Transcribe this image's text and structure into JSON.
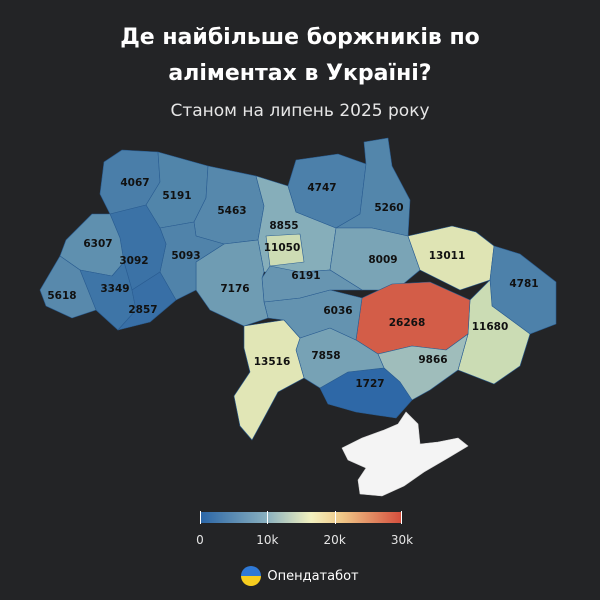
{
  "title_line1": "Де найбільше боржників по",
  "title_line2": "аліментах в Україні?",
  "subtitle": "Станом на липень 2025 року",
  "map_data": {
    "metric": "debtors_count",
    "color_scale": {
      "min": 0,
      "max": 30000,
      "colors": [
        "#2a65a6",
        "#89b0bf",
        "#f2f1bf",
        "#f0c888",
        "#d44d3c"
      ]
    },
    "regions": [
      {
        "name": "Volyn",
        "value": 4067,
        "color": "#4a7ea9"
      },
      {
        "name": "Rivne",
        "value": 5191,
        "color": "#5185aa"
      },
      {
        "name": "Zhytomyr",
        "value": 5463,
        "color": "#5688ac"
      },
      {
        "name": "Kyiv Oblast",
        "value": 8855,
        "color": "#86aeba"
      },
      {
        "name": "Kyiv City",
        "value": 11050,
        "color": "#cddcb4"
      },
      {
        "name": "Chernihiv",
        "value": 4747,
        "color": "#4c80aa"
      },
      {
        "name": "Sumy",
        "value": 5260,
        "color": "#5386ab"
      },
      {
        "name": "Poltava",
        "value": 8009,
        "color": "#7aa4b6"
      },
      {
        "name": "Kharkiv",
        "value": 13011,
        "color": "#dfe4b4"
      },
      {
        "name": "Luhansk",
        "value": 4781,
        "color": "#4d81aa"
      },
      {
        "name": "Donetsk",
        "value": 11680,
        "color": "#cbdcb4"
      },
      {
        "name": "Dnipropetrovsk",
        "value": 26268,
        "color": "#d35d48"
      },
      {
        "name": "Zaporizhzhia",
        "value": 9866,
        "color": "#9fbdbb"
      },
      {
        "name": "Kherson",
        "value": 1727,
        "color": "#2e68a7"
      },
      {
        "name": "Mykolaiv",
        "value": 7858,
        "color": "#77a2b5"
      },
      {
        "name": "Odesa",
        "value": 13516,
        "color": "#e1e6b6"
      },
      {
        "name": "Kirovohrad",
        "value": 6036,
        "color": "#6493b0"
      },
      {
        "name": "Cherkasy",
        "value": 6191,
        "color": "#6795b1"
      },
      {
        "name": "Vinnytsia",
        "value": 7176,
        "color": "#6f9cb3"
      },
      {
        "name": "Khmelnytskyi",
        "value": 5093,
        "color": "#5083aa"
      },
      {
        "name": "Ternopil",
        "value": 3092,
        "color": "#3b72a6"
      },
      {
        "name": "Lviv",
        "value": 6307,
        "color": "#5f90af"
      },
      {
        "name": "Ivano-Frankivsk",
        "value": 3349,
        "color": "#3e75a7"
      },
      {
        "name": "Zakarpattia",
        "value": 5618,
        "color": "#5889ac"
      },
      {
        "name": "Chernivtsi",
        "value": 2857,
        "color": "#386fa6"
      },
      {
        "name": "Crimea",
        "value": null,
        "color": "#f4f4f4"
      }
    ]
  },
  "legend": {
    "ticks": [
      {
        "label": "0",
        "value": 0
      },
      {
        "label": "10k",
        "value": 10000
      },
      {
        "label": "20k",
        "value": 20000
      },
      {
        "label": "30k",
        "value": 30000
      }
    ]
  },
  "footer": {
    "text": "Опендатабот",
    "logo": "opendatabot-logo"
  }
}
